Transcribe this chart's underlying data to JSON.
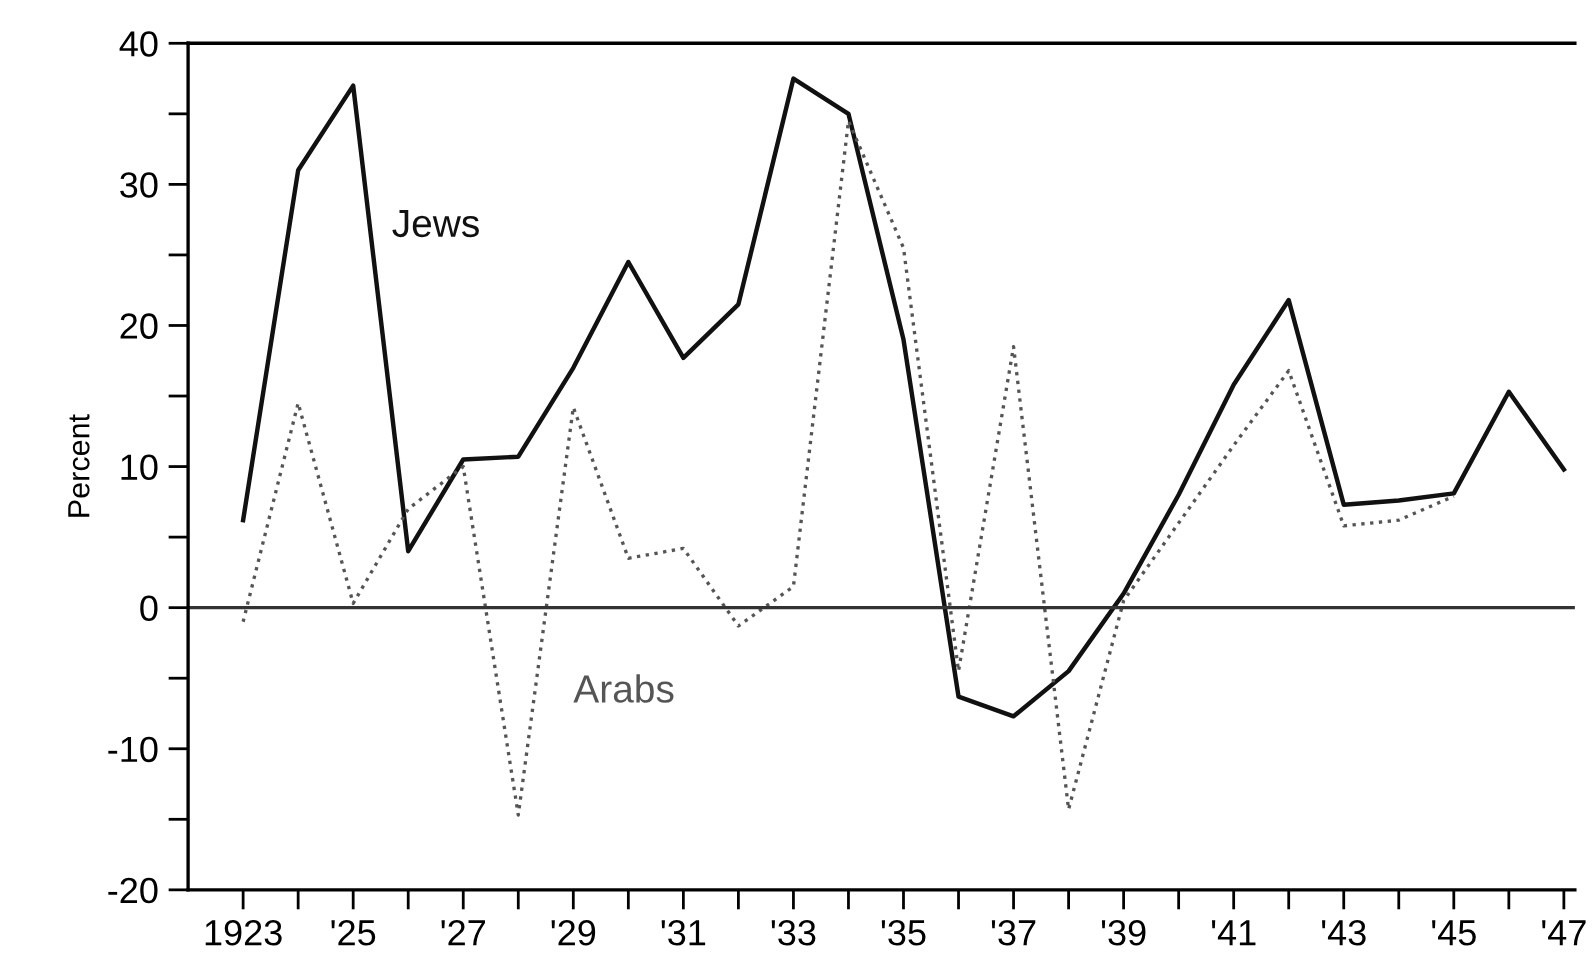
{
  "chart_data": {
    "type": "line",
    "ylabel": "Percent",
    "categories": [
      "1923",
      null,
      "'25",
      null,
      "'27",
      null,
      "'29",
      null,
      "'31",
      null,
      "'33",
      null,
      "'35",
      null,
      "'37",
      null,
      "'39",
      null,
      "'41",
      null,
      "'43",
      null,
      "'45",
      null,
      "'47"
    ],
    "series": [
      {
        "name": "Jews",
        "color": "#111111",
        "line_style": "solid",
        "values": [
          6.2,
          31,
          37,
          4,
          10.5,
          10.7,
          17,
          24.5,
          17.7,
          21.5,
          37.5,
          35,
          19,
          -6.3,
          -7.7,
          -4.5,
          1,
          8,
          15.8,
          21.8,
          7.3,
          7.6,
          8.1,
          15.3,
          9.8
        ]
      },
      {
        "name": "Arabs",
        "color": "#555555",
        "line_style": "dotted",
        "values": [
          -1,
          14.5,
          0.3,
          7,
          10,
          -14.7,
          14.2,
          3.5,
          4.2,
          -1.3,
          1.5,
          34.5,
          25.5,
          -4.5,
          18.5,
          -14.3,
          0.5,
          6,
          11.5,
          16.8,
          5.8,
          6.2,
          7.9,
          null,
          null
        ]
      }
    ],
    "ylim": [
      -20,
      40
    ],
    "yticks": [
      -20,
      {
        "value": -15,
        "label": null
      },
      -10,
      {
        "value": -5,
        "label": null
      },
      0,
      {
        "value": 5,
        "label": null
      },
      10,
      {
        "value": 15,
        "label": null
      },
      20,
      {
        "value": 25,
        "label": null
      },
      30,
      {
        "value": 35,
        "label": null
      },
      40
    ],
    "ref_lines": [
      {
        "axis": "y",
        "value": 0,
        "color": "#333333"
      }
    ],
    "grid": false,
    "legend": false,
    "marker": "none"
  }
}
